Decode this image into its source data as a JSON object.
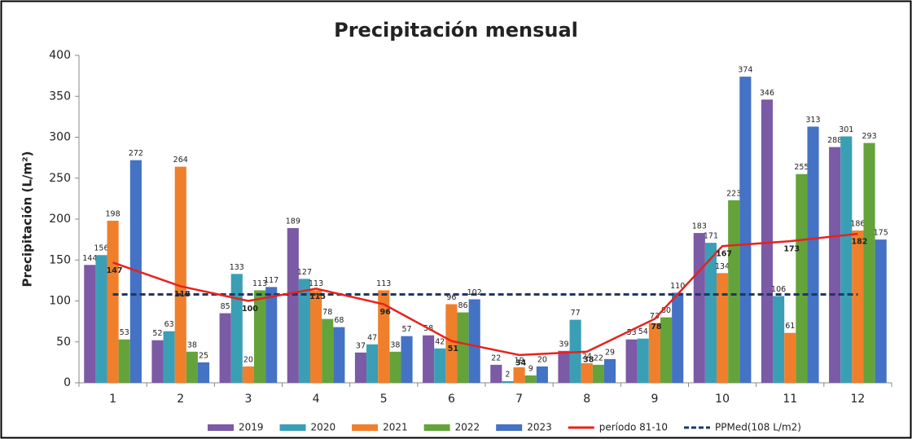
{
  "chart_data": {
    "type": "bar",
    "title": "Precipitación mensual",
    "y_label": "Precipitación (L/m²)",
    "categories": [
      "1",
      "2",
      "3",
      "4",
      "5",
      "6",
      "7",
      "8",
      "9",
      "10",
      "11",
      "12"
    ],
    "series": [
      {
        "name": "2019",
        "color": "#7b5aa6",
        "values": [
          144,
          52,
          85,
          189,
          37,
          58,
          22,
          39,
          53,
          183,
          346,
          288
        ]
      },
      {
        "name": "2020",
        "color": "#3a9fb5",
        "values": [
          156,
          63,
          133,
          127,
          47,
          42,
          2,
          77,
          54,
          171,
          106,
          301
        ]
      },
      {
        "name": "2021",
        "color": "#f07f2c",
        "values": [
          198,
          264,
          20,
          113,
          113,
          96,
          19,
          24,
          73,
          134,
          61,
          186
        ]
      },
      {
        "name": "2022",
        "color": "#64a33a",
        "values": [
          53,
          38,
          113,
          78,
          38,
          86,
          9,
          22,
          80,
          223,
          255,
          293
        ]
      },
      {
        "name": "2023",
        "color": "#4472c4",
        "values": [
          272,
          25,
          117,
          68,
          57,
          102,
          20,
          29,
          110,
          374,
          313,
          175
        ]
      },
      {
        "name": "período 81-10",
        "color": "#e8211d",
        "type": "line",
        "values": [
          147,
          118,
          100,
          115,
          96,
          51,
          34,
          38,
          78,
          167,
          173,
          182
        ]
      }
    ],
    "reference": {
      "name": "PPMed(108 L/m2)",
      "color": "#1f3864",
      "value": 108
    },
    "ylim": [
      0,
      400
    ],
    "yticks": [
      0,
      50,
      100,
      150,
      200,
      250,
      300,
      350,
      400
    ],
    "grid": false
  }
}
